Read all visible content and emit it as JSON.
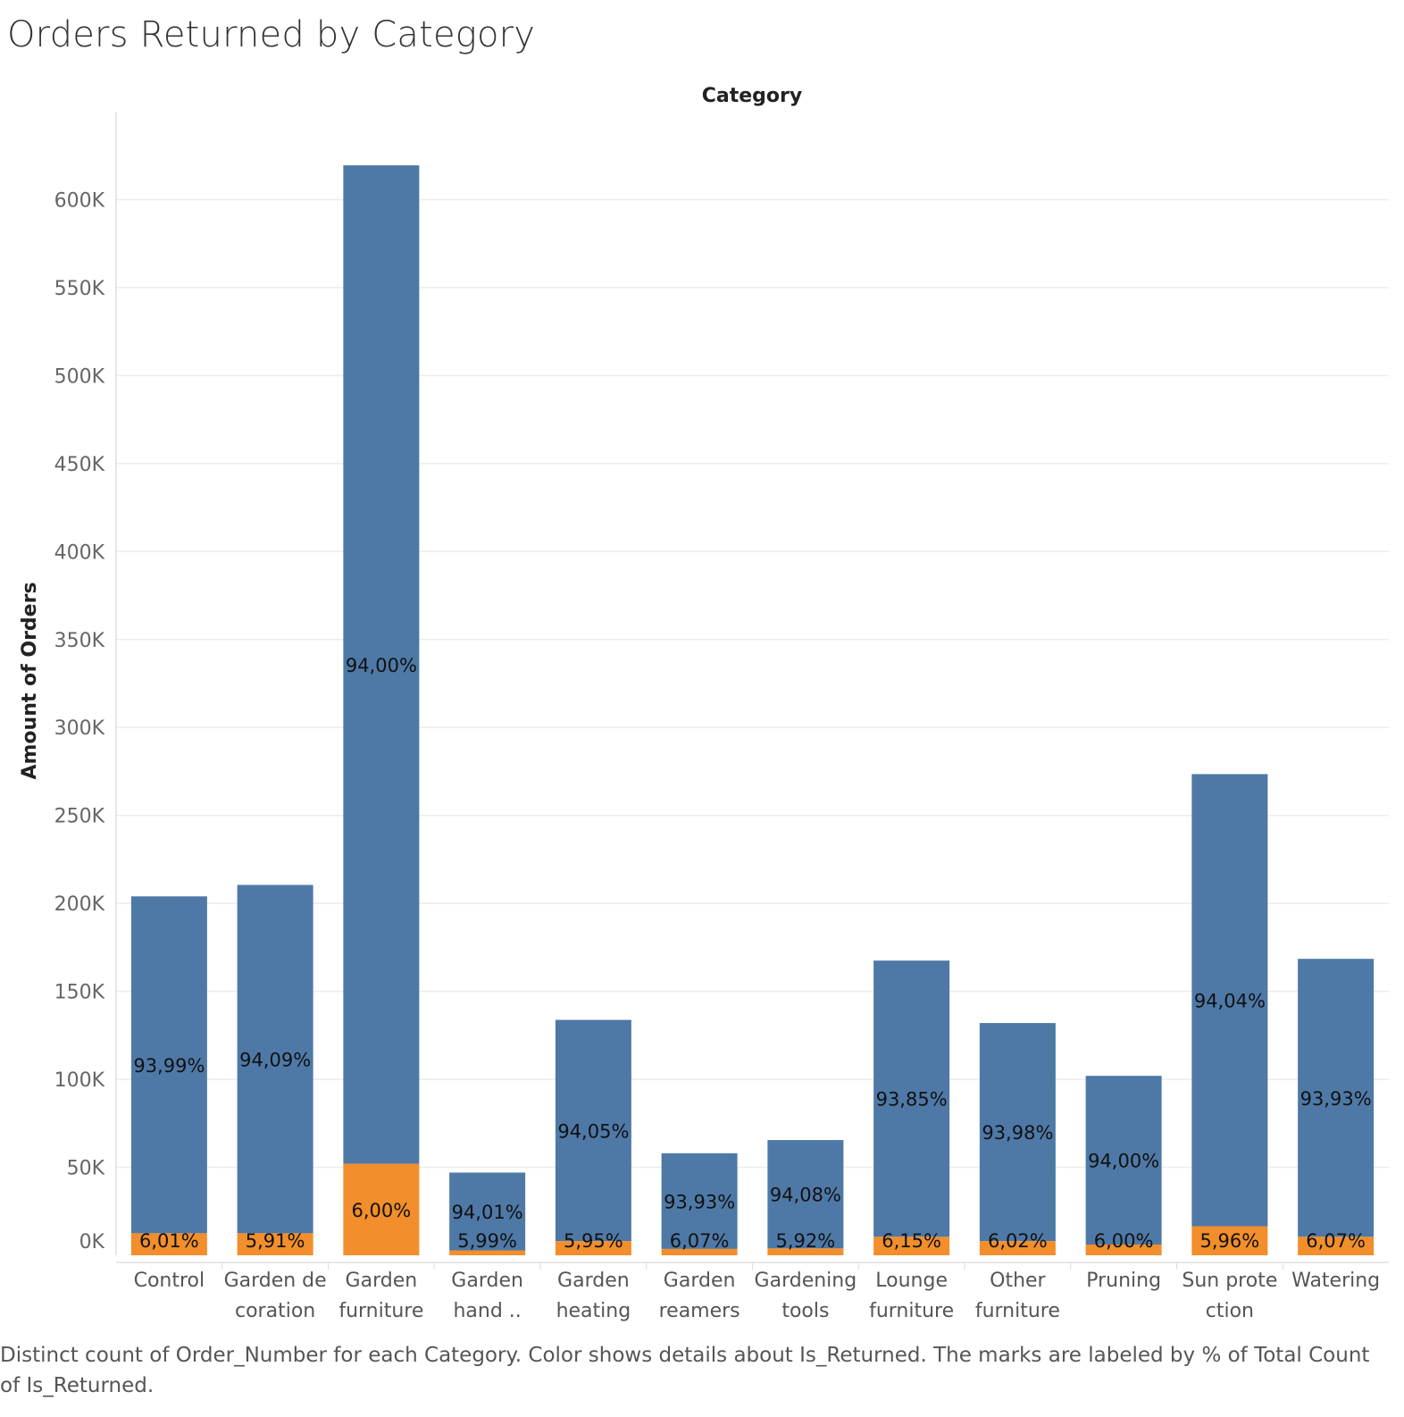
{
  "title": "Orders Returned by Category",
  "caption": "Distinct count of Order_Number for each Category.  Color shows details about Is_Returned.  The marks are labeled by % of Total Count of Is_Returned.",
  "colors": {
    "not_returned": "#4e79a7",
    "returned": "#f28e2b",
    "grid": "#ececec",
    "text": "#333333"
  },
  "chart_data": {
    "type": "bar",
    "stacked": true,
    "title": "Orders Returned by Category",
    "column_header": "Category",
    "ylabel": "Amount of Orders",
    "ylim": [
      0,
      650000
    ],
    "yticks": [
      0,
      50000,
      100000,
      150000,
      200000,
      250000,
      300000,
      350000,
      400000,
      450000,
      500000,
      550000,
      600000
    ],
    "ytick_labels": [
      "0K",
      "50K",
      "100K",
      "150K",
      "200K",
      "250K",
      "300K",
      "350K",
      "400K",
      "450K",
      "500K",
      "550K",
      "600K"
    ],
    "grid": true,
    "categories": [
      [
        "Control"
      ],
      [
        "Garden de",
        "coration"
      ],
      [
        "Garden",
        "furniture"
      ],
      [
        "Garden",
        "hand .."
      ],
      [
        "Garden",
        "heating"
      ],
      [
        "Garden",
        "reamers"
      ],
      [
        "Gardening",
        "tools"
      ],
      [
        "Lounge",
        "furniture"
      ],
      [
        "Other",
        "furniture"
      ],
      [
        "Pruning"
      ],
      [
        "Sun prote",
        "ction"
      ],
      [
        "Watering"
      ]
    ],
    "series": [
      {
        "key": "returned",
        "values": [
          12500,
          12500,
          52000,
          2800,
          8000,
          3600,
          3900,
          10500,
          8000,
          6100,
          16500,
          10500
        ],
        "labels": [
          "6,01%",
          "5,91%",
          "6,00%",
          "5,99%",
          "5,95%",
          "6,07%",
          "5,92%",
          "6,15%",
          "6,02%",
          "6,00%",
          "5,96%",
          "6,07%"
        ]
      },
      {
        "key": "not_returned",
        "values": [
          191500,
          198000,
          567500,
          44200,
          125800,
          54400,
          61600,
          157000,
          124000,
          95900,
          257000,
          158000
        ],
        "labels": [
          "93,99%",
          "94,09%",
          "94,00%",
          "94,01%",
          "94,05%",
          "93,93%",
          "94,08%",
          "93,85%",
          "93,98%",
          "94,00%",
          "94,04%",
          "93,93%"
        ]
      }
    ]
  }
}
